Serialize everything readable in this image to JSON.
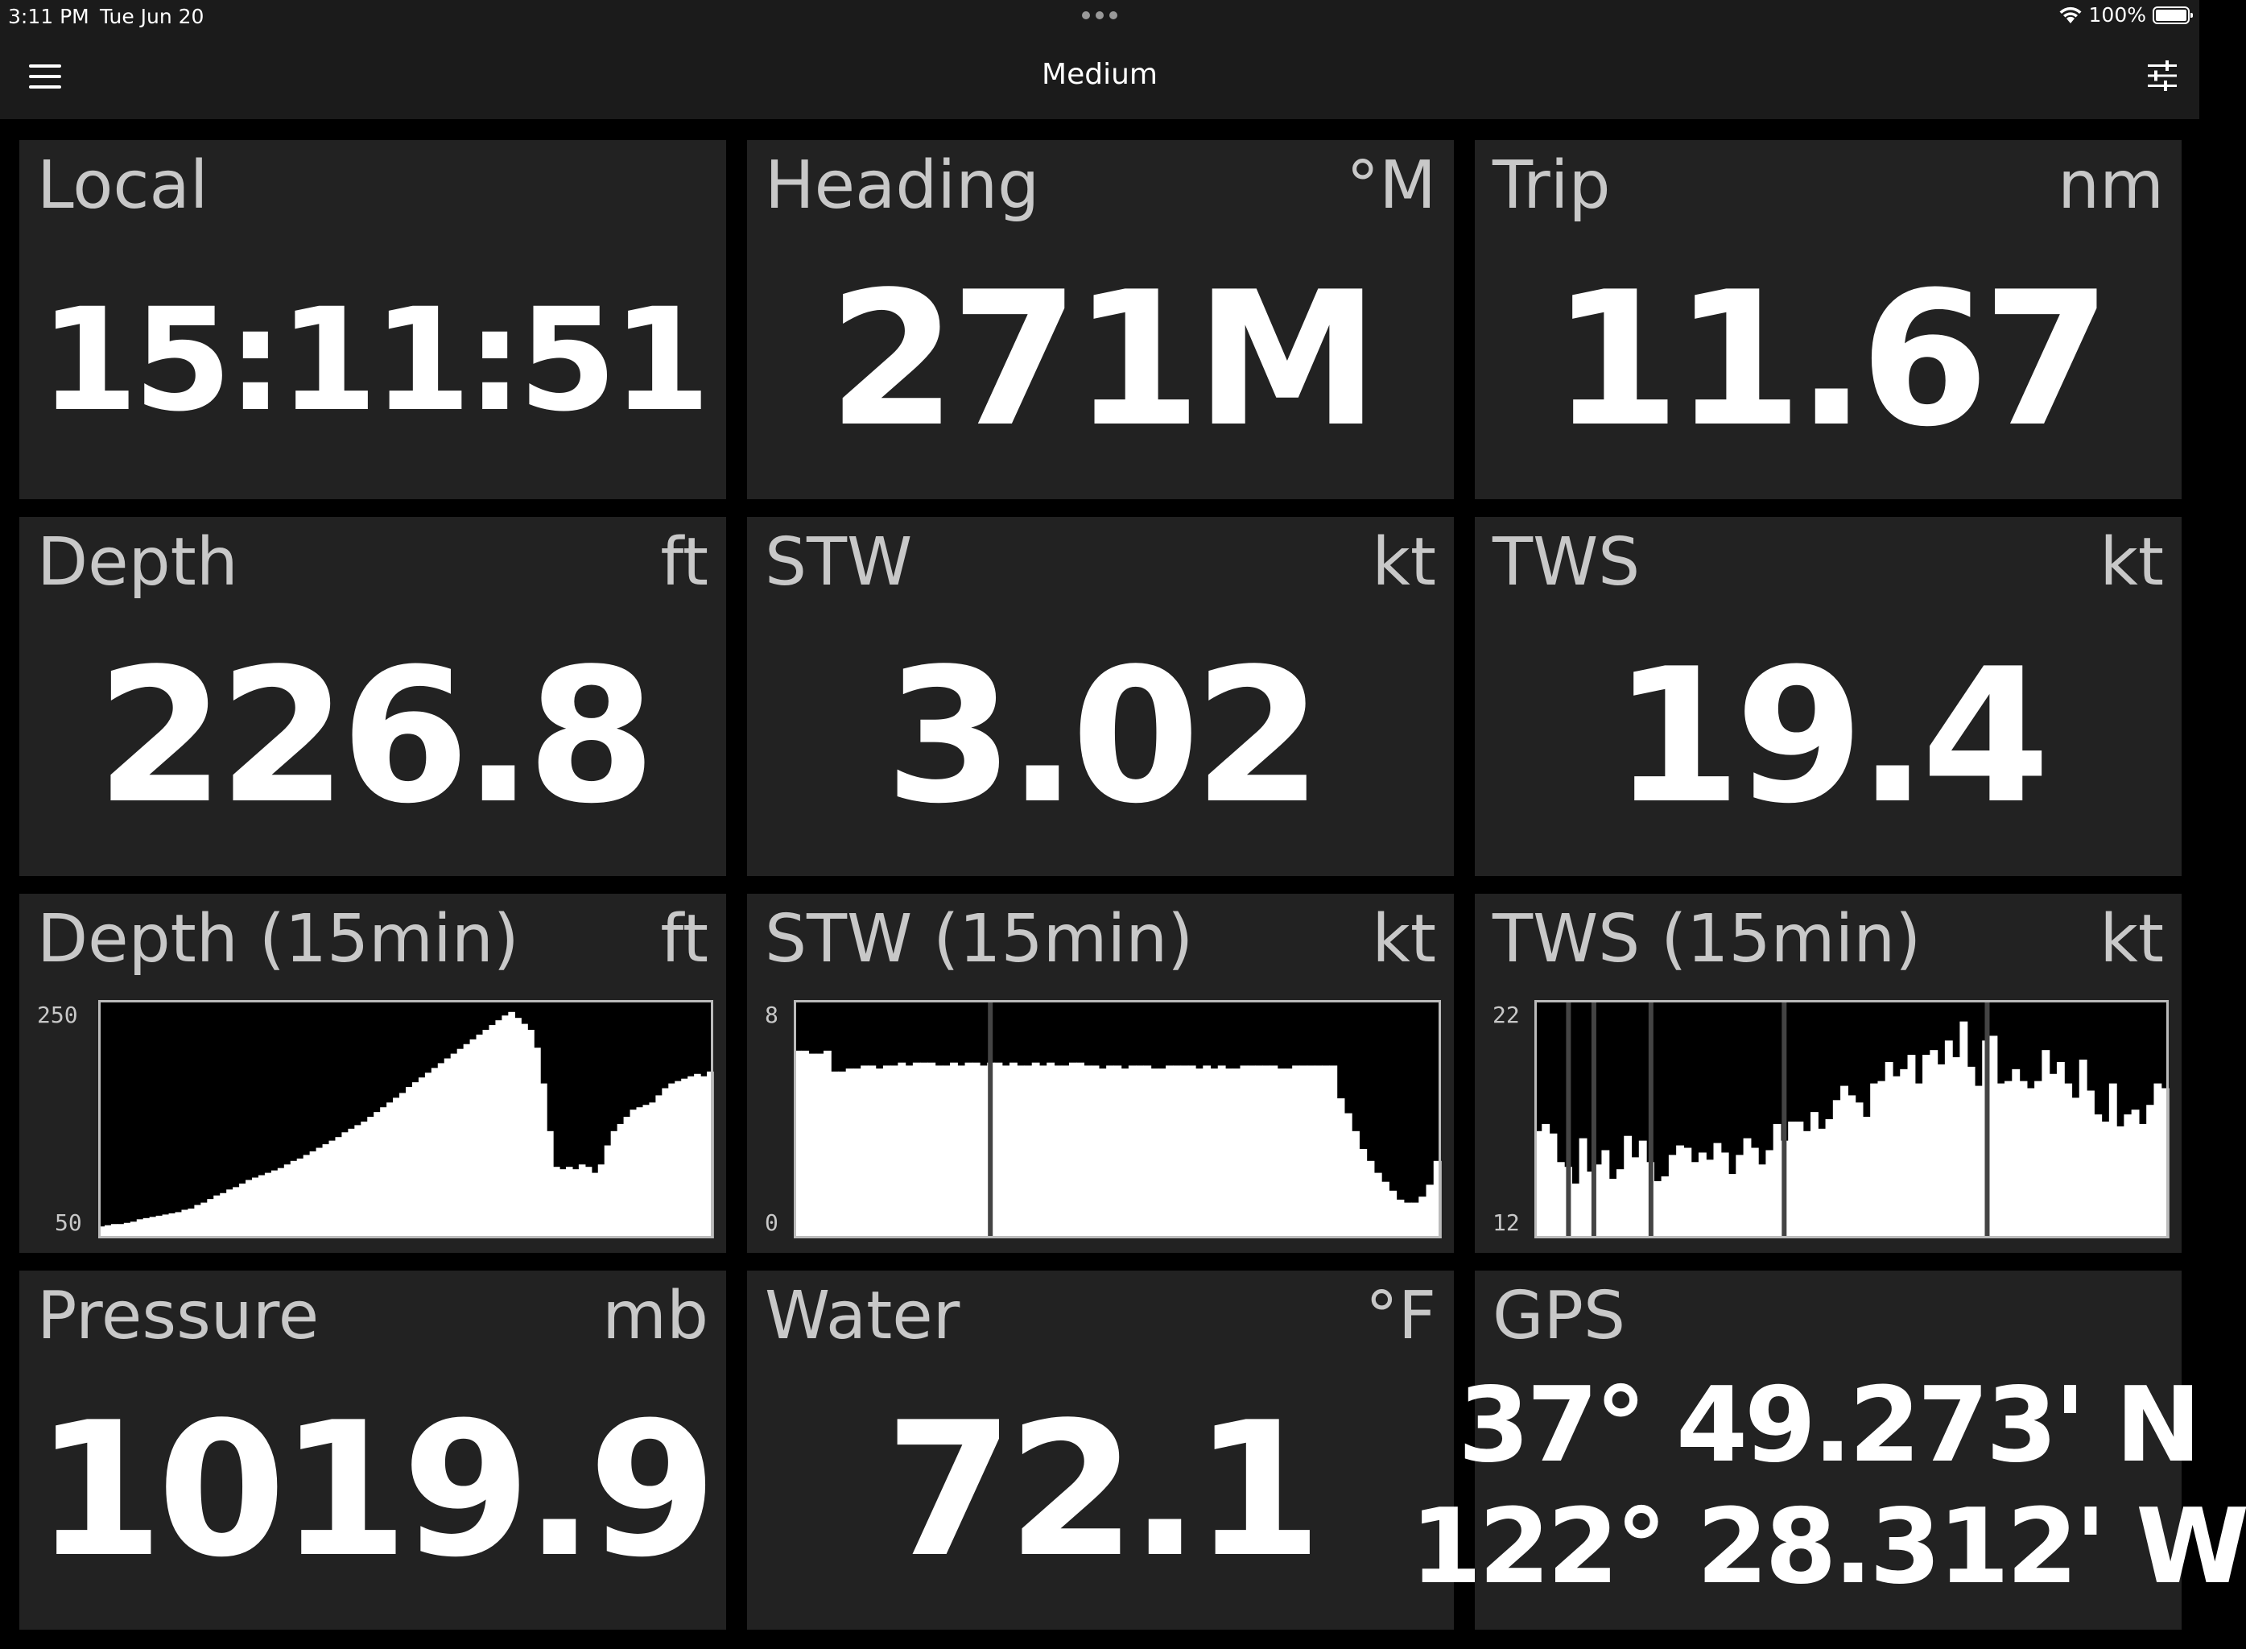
{
  "status_bar": {
    "time": "3:11 PM",
    "date": "Tue Jun 20",
    "battery": "100%"
  },
  "nav": {
    "title": "Medium",
    "menu_icon": "hamburger-menu-icon",
    "settings_icon": "sliders-icon"
  },
  "tiles": {
    "local": {
      "label": "Local",
      "unit": "",
      "value": "15:11:51"
    },
    "heading": {
      "label": "Heading",
      "unit": "°M",
      "value": "271M"
    },
    "trip": {
      "label": "Trip",
      "unit": "nm",
      "value": "11.67"
    },
    "depth": {
      "label": "Depth",
      "unit": "ft",
      "value": "226.8"
    },
    "stw": {
      "label": "STW",
      "unit": "kt",
      "value": "3.02"
    },
    "tws": {
      "label": "TWS",
      "unit": "kt",
      "value": "19.4"
    },
    "pressure": {
      "label": "Pressure",
      "unit": "mb",
      "value": "1019.9"
    },
    "water": {
      "label": "Water",
      "unit": "°F",
      "value": "72.1"
    },
    "gps": {
      "label": "GPS",
      "unit": "",
      "lat": "37° 49.273' N",
      "lon": "122° 28.312' W"
    }
  },
  "chart_data": [
    {
      "type": "area",
      "title": "Depth (15min)",
      "unit": "ft",
      "ylim": [
        50,
        250
      ],
      "values": [
        60,
        61,
        62,
        62,
        63,
        64,
        66,
        67,
        68,
        69,
        70,
        71,
        72,
        74,
        75,
        78,
        80,
        83,
        86,
        88,
        91,
        93,
        96,
        99,
        101,
        103,
        105,
        107,
        109,
        112,
        115,
        117,
        120,
        123,
        126,
        129,
        132,
        135,
        139,
        142,
        145,
        148,
        152,
        156,
        160,
        164,
        168,
        172,
        177,
        181,
        185,
        189,
        193,
        197,
        201,
        205,
        209,
        213,
        217,
        221,
        225,
        229,
        233,
        237,
        240,
        235,
        230,
        225,
        210,
        180,
        140,
        110,
        108,
        110,
        108,
        112,
        110,
        105,
        112,
        128,
        140,
        146,
        152,
        158,
        160,
        162,
        164,
        170,
        176,
        180,
        182,
        184,
        186,
        188,
        186,
        190
      ]
    },
    {
      "type": "area",
      "title": "STW (15min)",
      "unit": "kt",
      "ylim": [
        0,
        8
      ],
      "gaps_at": [
        0.3
      ],
      "values": [
        6.3,
        6.3,
        6.2,
        6.2,
        6.3,
        5.6,
        5.6,
        5.7,
        5.7,
        5.8,
        5.8,
        5.7,
        5.8,
        5.8,
        5.9,
        5.8,
        5.9,
        5.9,
        5.9,
        5.8,
        5.8,
        5.9,
        5.8,
        5.9,
        5.9,
        5.8,
        5.9,
        5.9,
        5.8,
        5.9,
        5.8,
        5.8,
        5.9,
        5.8,
        5.9,
        5.8,
        5.8,
        5.9,
        5.9,
        5.8,
        5.8,
        5.7,
        5.8,
        5.8,
        5.7,
        5.8,
        5.8,
        5.8,
        5.7,
        5.7,
        5.8,
        5.8,
        5.8,
        5.8,
        5.7,
        5.8,
        5.7,
        5.8,
        5.7,
        5.7,
        5.8,
        5.8,
        5.8,
        5.8,
        5.8,
        5.7,
        5.7,
        5.8,
        5.8,
        5.8,
        5.8,
        5.8,
        5.8,
        4.7,
        4.2,
        3.6,
        3.0,
        2.6,
        2.2,
        1.9,
        1.6,
        1.3,
        1.2,
        1.2,
        1.4,
        1.8,
        2.6
      ]
    },
    {
      "type": "area",
      "title": "TWS (15min)",
      "unit": "kt",
      "ylim": [
        12,
        22
      ],
      "gaps_at": [
        0.05,
        0.09,
        0.18,
        0.39,
        0.71
      ],
      "values": [
        16.5,
        16.8,
        16.4,
        15.2,
        15.0,
        14.3,
        16.2,
        14.8,
        15.1,
        15.7,
        14.5,
        14.9,
        16.3,
        15.4,
        16.1,
        15.2,
        14.4,
        14.6,
        15.5,
        15.9,
        15.8,
        15.2,
        15.6,
        15.3,
        16.0,
        15.6,
        14.7,
        15.5,
        16.2,
        15.8,
        15.1,
        15.7,
        16.8,
        16.1,
        16.9,
        16.9,
        16.5,
        17.3,
        16.6,
        17.0,
        17.8,
        18.4,
        18.0,
        17.7,
        17.1,
        18.5,
        18.6,
        19.4,
        18.8,
        19.1,
        19.7,
        18.5,
        19.7,
        19.9,
        19.3,
        20.3,
        19.6,
        21.1,
        19.2,
        18.4,
        20.3,
        20.5,
        18.5,
        18.6,
        19.1,
        18.6,
        18.3,
        18.6,
        19.9,
        18.9,
        19.4,
        18.5,
        17.9,
        19.5,
        18.2,
        17.2,
        16.9,
        18.5,
        16.7,
        17.2,
        17.4,
        16.8,
        17.6,
        18.5,
        18.3
      ]
    }
  ]
}
